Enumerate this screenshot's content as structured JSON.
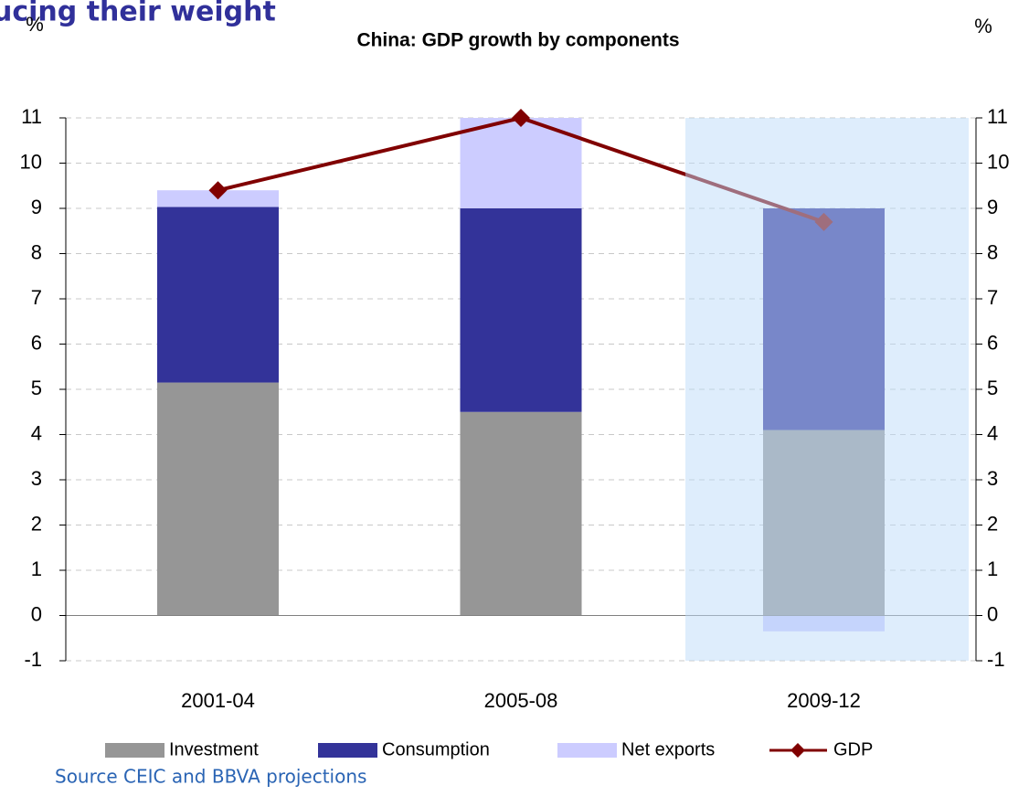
{
  "heading": "ucing their weight",
  "chart_data": {
    "type": "bar",
    "stacked": true,
    "title": "China: GDP growth by components",
    "ylabel": "%",
    "y2label": "%",
    "categories": [
      "2001-04",
      "2005-08",
      "2009-12"
    ],
    "series": [
      {
        "name": "Investment",
        "color": "#969696",
        "values": [
          5.15,
          4.5,
          4.1
        ]
      },
      {
        "name": "Consumption",
        "color": "#333399",
        "values": [
          3.88,
          4.5,
          4.9
        ]
      },
      {
        "name": "Net exports",
        "color": "#ccccff",
        "values": [
          0.37,
          2.0,
          -0.35
        ]
      },
      {
        "name": "GDP",
        "type": "line",
        "color": "#800000",
        "values": [
          9.4,
          11.0,
          8.7
        ]
      }
    ],
    "ylim": [
      -1,
      11
    ],
    "yticks": [
      -1,
      0,
      1,
      2,
      3,
      4,
      5,
      6,
      7,
      8,
      9,
      10,
      11
    ],
    "y2lim": [
      -1,
      11
    ],
    "y2ticks": [
      -1,
      0,
      1,
      2,
      3,
      4,
      5,
      6,
      7,
      8,
      9,
      10,
      11
    ],
    "grid": true,
    "legend": "bottom"
  },
  "source": "Source CEIC and BBVA projections"
}
